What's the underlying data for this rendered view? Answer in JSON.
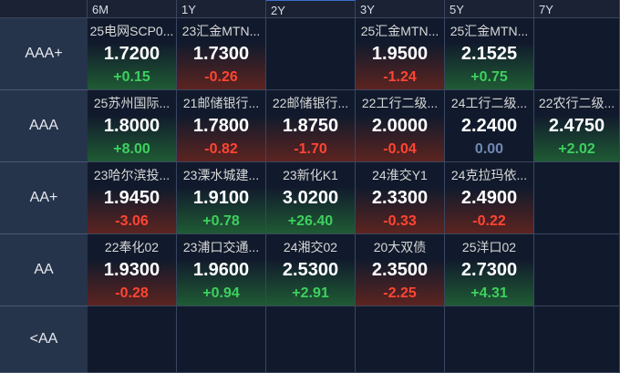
{
  "columns": [
    "6M",
    "1Y",
    "2Y",
    "3Y",
    "5Y",
    "7Y"
  ],
  "rows": [
    {
      "label": "AAA+",
      "cells": [
        {
          "name": "25电网SCP0...",
          "yield": "1.7200",
          "change": "+0.15"
        },
        {
          "name": "23汇金MTN...",
          "yield": "1.7300",
          "change": "-0.26"
        },
        null,
        {
          "name": "25汇金MTN...",
          "yield": "1.9500",
          "change": "-1.24"
        },
        {
          "name": "25汇金MTN...",
          "yield": "2.1525",
          "change": "+0.75"
        },
        null
      ]
    },
    {
      "label": "AAA",
      "cells": [
        {
          "name": "25苏州国际...",
          "yield": "1.8000",
          "change": "+8.00"
        },
        {
          "name": "21邮储银行...",
          "yield": "1.7800",
          "change": "-0.82"
        },
        {
          "name": "22邮储银行...",
          "yield": "1.8750",
          "change": "-1.70"
        },
        {
          "name": "22工行二级...",
          "yield": "2.0000",
          "change": "-0.04"
        },
        {
          "name": "24工行二级...",
          "yield": "2.2400",
          "change": "0.00"
        },
        {
          "name": "22农行二级...",
          "yield": "2.4750",
          "change": "+2.02"
        }
      ]
    },
    {
      "label": "AA+",
      "cells": [
        {
          "name": "23哈尔滨投...",
          "yield": "1.9450",
          "change": "-3.06"
        },
        {
          "name": "23溧水城建...",
          "yield": "1.9100",
          "change": "+0.78"
        },
        {
          "name": "23新化K1",
          "yield": "3.0200",
          "change": "+26.40"
        },
        {
          "name": "24淮交Y1",
          "yield": "2.3300",
          "change": "-0.33"
        },
        {
          "name": "24克拉玛依...",
          "yield": "2.4900",
          "change": "-0.22"
        },
        null
      ]
    },
    {
      "label": "AA",
      "cells": [
        {
          "name": "22奉化02",
          "yield": "1.9300",
          "change": "-0.28"
        },
        {
          "name": "23浦口交通...",
          "yield": "1.9600",
          "change": "+0.94"
        },
        {
          "name": "24湘交02",
          "yield": "2.5300",
          "change": "+2.91"
        },
        {
          "name": "20大双债",
          "yield": "2.3500",
          "change": "-2.25"
        },
        {
          "name": "25洋口02",
          "yield": "2.7300",
          "change": "+4.31"
        },
        null
      ]
    },
    {
      "label": "<AA",
      "cells": [
        null,
        null,
        null,
        null,
        null,
        null
      ]
    }
  ]
}
